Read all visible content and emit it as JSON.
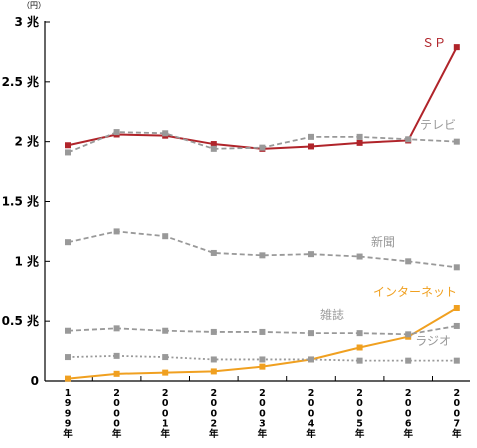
{
  "chart_data": {
    "type": "line",
    "unit_label": "（円）",
    "y_ticks": [
      {
        "value": 0,
        "label": "0"
      },
      {
        "value": 0.5,
        "label": "0.5 兆"
      },
      {
        "value": 1,
        "label": "1 兆"
      },
      {
        "value": 1.5,
        "label": "1.5 兆"
      },
      {
        "value": 2,
        "label": "2 兆"
      },
      {
        "value": 2.5,
        "label": "2.5 兆"
      },
      {
        "value": 3,
        "label": "3 兆"
      }
    ],
    "ylim": [
      0,
      3
    ],
    "x": [
      "1999年",
      "2000年",
      "2001年",
      "2002年",
      "2003年",
      "2004年",
      "2005年",
      "2006年",
      "2007年"
    ],
    "series": [
      {
        "name": "ＳＰ",
        "color": "#b0242a",
        "style": "solid",
        "values": [
          1.97,
          2.06,
          2.05,
          1.98,
          1.94,
          1.96,
          1.99,
          2.01,
          2.79
        ]
      },
      {
        "name": "テレビ",
        "color": "#999999",
        "style": "dashed",
        "values": [
          1.91,
          2.08,
          2.07,
          1.94,
          1.95,
          2.04,
          2.04,
          2.02,
          2.0
        ]
      },
      {
        "name": "新聞",
        "color": "#999999",
        "style": "dashed",
        "values": [
          1.16,
          1.25,
          1.21,
          1.07,
          1.05,
          1.06,
          1.04,
          1.0,
          0.95
        ]
      },
      {
        "name": "インターネット",
        "color": "#f0a020",
        "style": "solid",
        "values": [
          0.02,
          0.06,
          0.07,
          0.08,
          0.12,
          0.18,
          0.28,
          0.37,
          0.61
        ]
      },
      {
        "name": "雑誌",
        "color": "#999999",
        "style": "dashed",
        "values": [
          0.42,
          0.44,
          0.42,
          0.41,
          0.41,
          0.4,
          0.4,
          0.39,
          0.46
        ]
      },
      {
        "name": "ラジオ",
        "color": "#999999",
        "style": "dotted",
        "values": [
          0.2,
          0.21,
          0.2,
          0.18,
          0.18,
          0.18,
          0.17,
          0.17,
          0.17
        ]
      }
    ]
  }
}
